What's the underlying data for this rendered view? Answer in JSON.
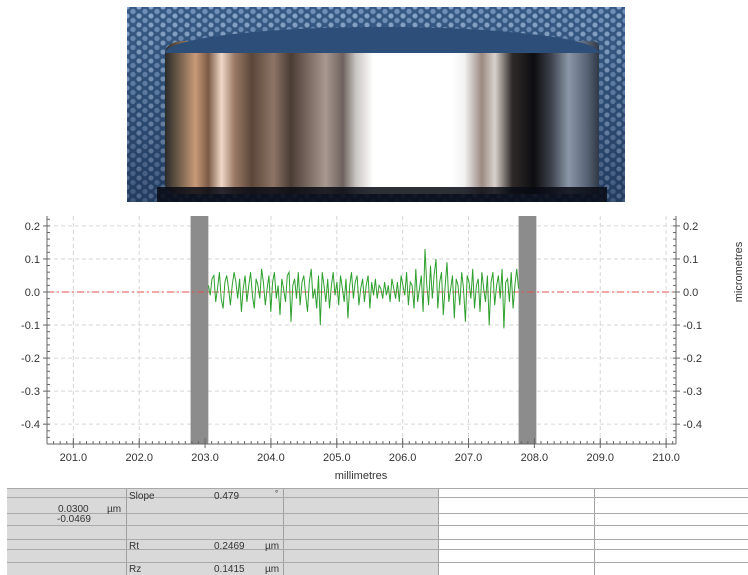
{
  "photo": {
    "alt": "metal ring on textured blue surface"
  },
  "chart_data": {
    "type": "line",
    "xlabel": "millimetres",
    "ylabel": "micrometres",
    "xlim": [
      200.6,
      210.15
    ],
    "ylim": [
      -0.46,
      0.23
    ],
    "x_ticks": [
      201.0,
      202.0,
      203.0,
      204.0,
      205.0,
      206.0,
      207.0,
      208.0,
      209.0,
      210.0
    ],
    "x_tick_labels": [
      "201.0",
      "202.0",
      "203.0",
      "204.0",
      "205.0",
      "206.0",
      "207.0",
      "208.0",
      "209.0",
      "210.0"
    ],
    "y_ticks": [
      0.2,
      0.1,
      0.0,
      -0.1,
      -0.2,
      -0.3,
      -0.4
    ],
    "y_tick_labels": [
      "0.2",
      "0.1",
      "0.0",
      "-0.1",
      "-0.2",
      "-0.3",
      "-0.4"
    ],
    "grid": true,
    "reference_line": {
      "y": 0.0,
      "color": "#e05050",
      "style": "dash-dot"
    },
    "excluded_bands": [
      {
        "x0": 202.78,
        "x1": 203.05
      },
      {
        "x0": 207.76,
        "x1": 208.03
      }
    ],
    "series": [
      {
        "color": "#2ea02e",
        "x_start": 203.05,
        "x_end": 207.76,
        "y": [
          0.02,
          -0.01,
          0.04,
          0.05,
          -0.03,
          0.01,
          0.06,
          -0.02,
          -0.05,
          0.03,
          0.05,
          0.01,
          -0.04,
          0.02,
          0.06,
          0.03,
          -0.02,
          0.04,
          -0.06,
          0.01,
          0.05,
          -0.03,
          0.02,
          0.06,
          -0.01,
          -0.05,
          0.04,
          0.02,
          -0.02,
          0.07,
          0.03,
          -0.04,
          0.01,
          0.05,
          -0.06,
          0.03,
          0.06,
          -0.02,
          0.02,
          -0.07,
          0.04,
          0.01,
          -0.03,
          0.05,
          0.06,
          -0.09,
          0.02,
          0.04,
          -0.02,
          0.06,
          -0.04,
          0.03,
          0.05,
          -0.01,
          -0.06,
          0.03,
          0.07,
          -0.02,
          0.01,
          -0.05,
          0.05,
          -0.1,
          0.06,
          0.02,
          -0.03,
          0.04,
          -0.05,
          0.02,
          0.06,
          -0.01,
          0.03,
          -0.04,
          0.05,
          0.01,
          -0.03,
          0.04,
          -0.08,
          0.02,
          0.06,
          -0.02,
          0.03,
          0.05,
          -0.04,
          0.01,
          0.04,
          -0.03,
          0.02,
          0.05,
          -0.05,
          0.03,
          -0.01,
          0.04,
          -0.02,
          0.02,
          0.01,
          -0.02,
          0.03,
          -0.01,
          0.02,
          -0.03,
          0.04,
          0.01,
          -0.02,
          0.03,
          -0.03,
          0.05,
          0.02,
          -0.01,
          0.06,
          -0.04,
          0.03,
          0.02,
          -0.05,
          0.07,
          -0.03,
          0.01,
          0.05,
          -0.06,
          0.13,
          0.02,
          -0.04,
          0.08,
          -0.02,
          0.05,
          0.1,
          -0.05,
          0.03,
          0.06,
          -0.07,
          0.02,
          0.09,
          -0.03,
          0.01,
          0.05,
          -0.08,
          0.04,
          0.02,
          -0.04,
          0.06,
          0.01,
          -0.09,
          0.05,
          0.03,
          -0.02,
          0.07,
          -0.05,
          0.02,
          0.04,
          -0.06,
          0.06,
          0.01,
          -0.03,
          0.05,
          -0.1,
          0.03,
          0.06,
          -0.04,
          0.02,
          0.05,
          -0.02,
          0.07,
          -0.11,
          0.03,
          0.04,
          -0.03,
          0.06,
          -0.05,
          0.02,
          0.07,
          0.01
        ]
      }
    ]
  },
  "table": {
    "rows": [
      {
        "label": "Slope",
        "value": "0.479",
        "unit": "°"
      },
      {
        "label": "Rt",
        "value": "0.2469",
        "unit": "µm"
      },
      {
        "label": "Rz",
        "value": "0.1415",
        "unit": "µm"
      }
    ],
    "left_values": [
      "0.0300",
      "-0.0469"
    ],
    "left_unit": "µm"
  }
}
